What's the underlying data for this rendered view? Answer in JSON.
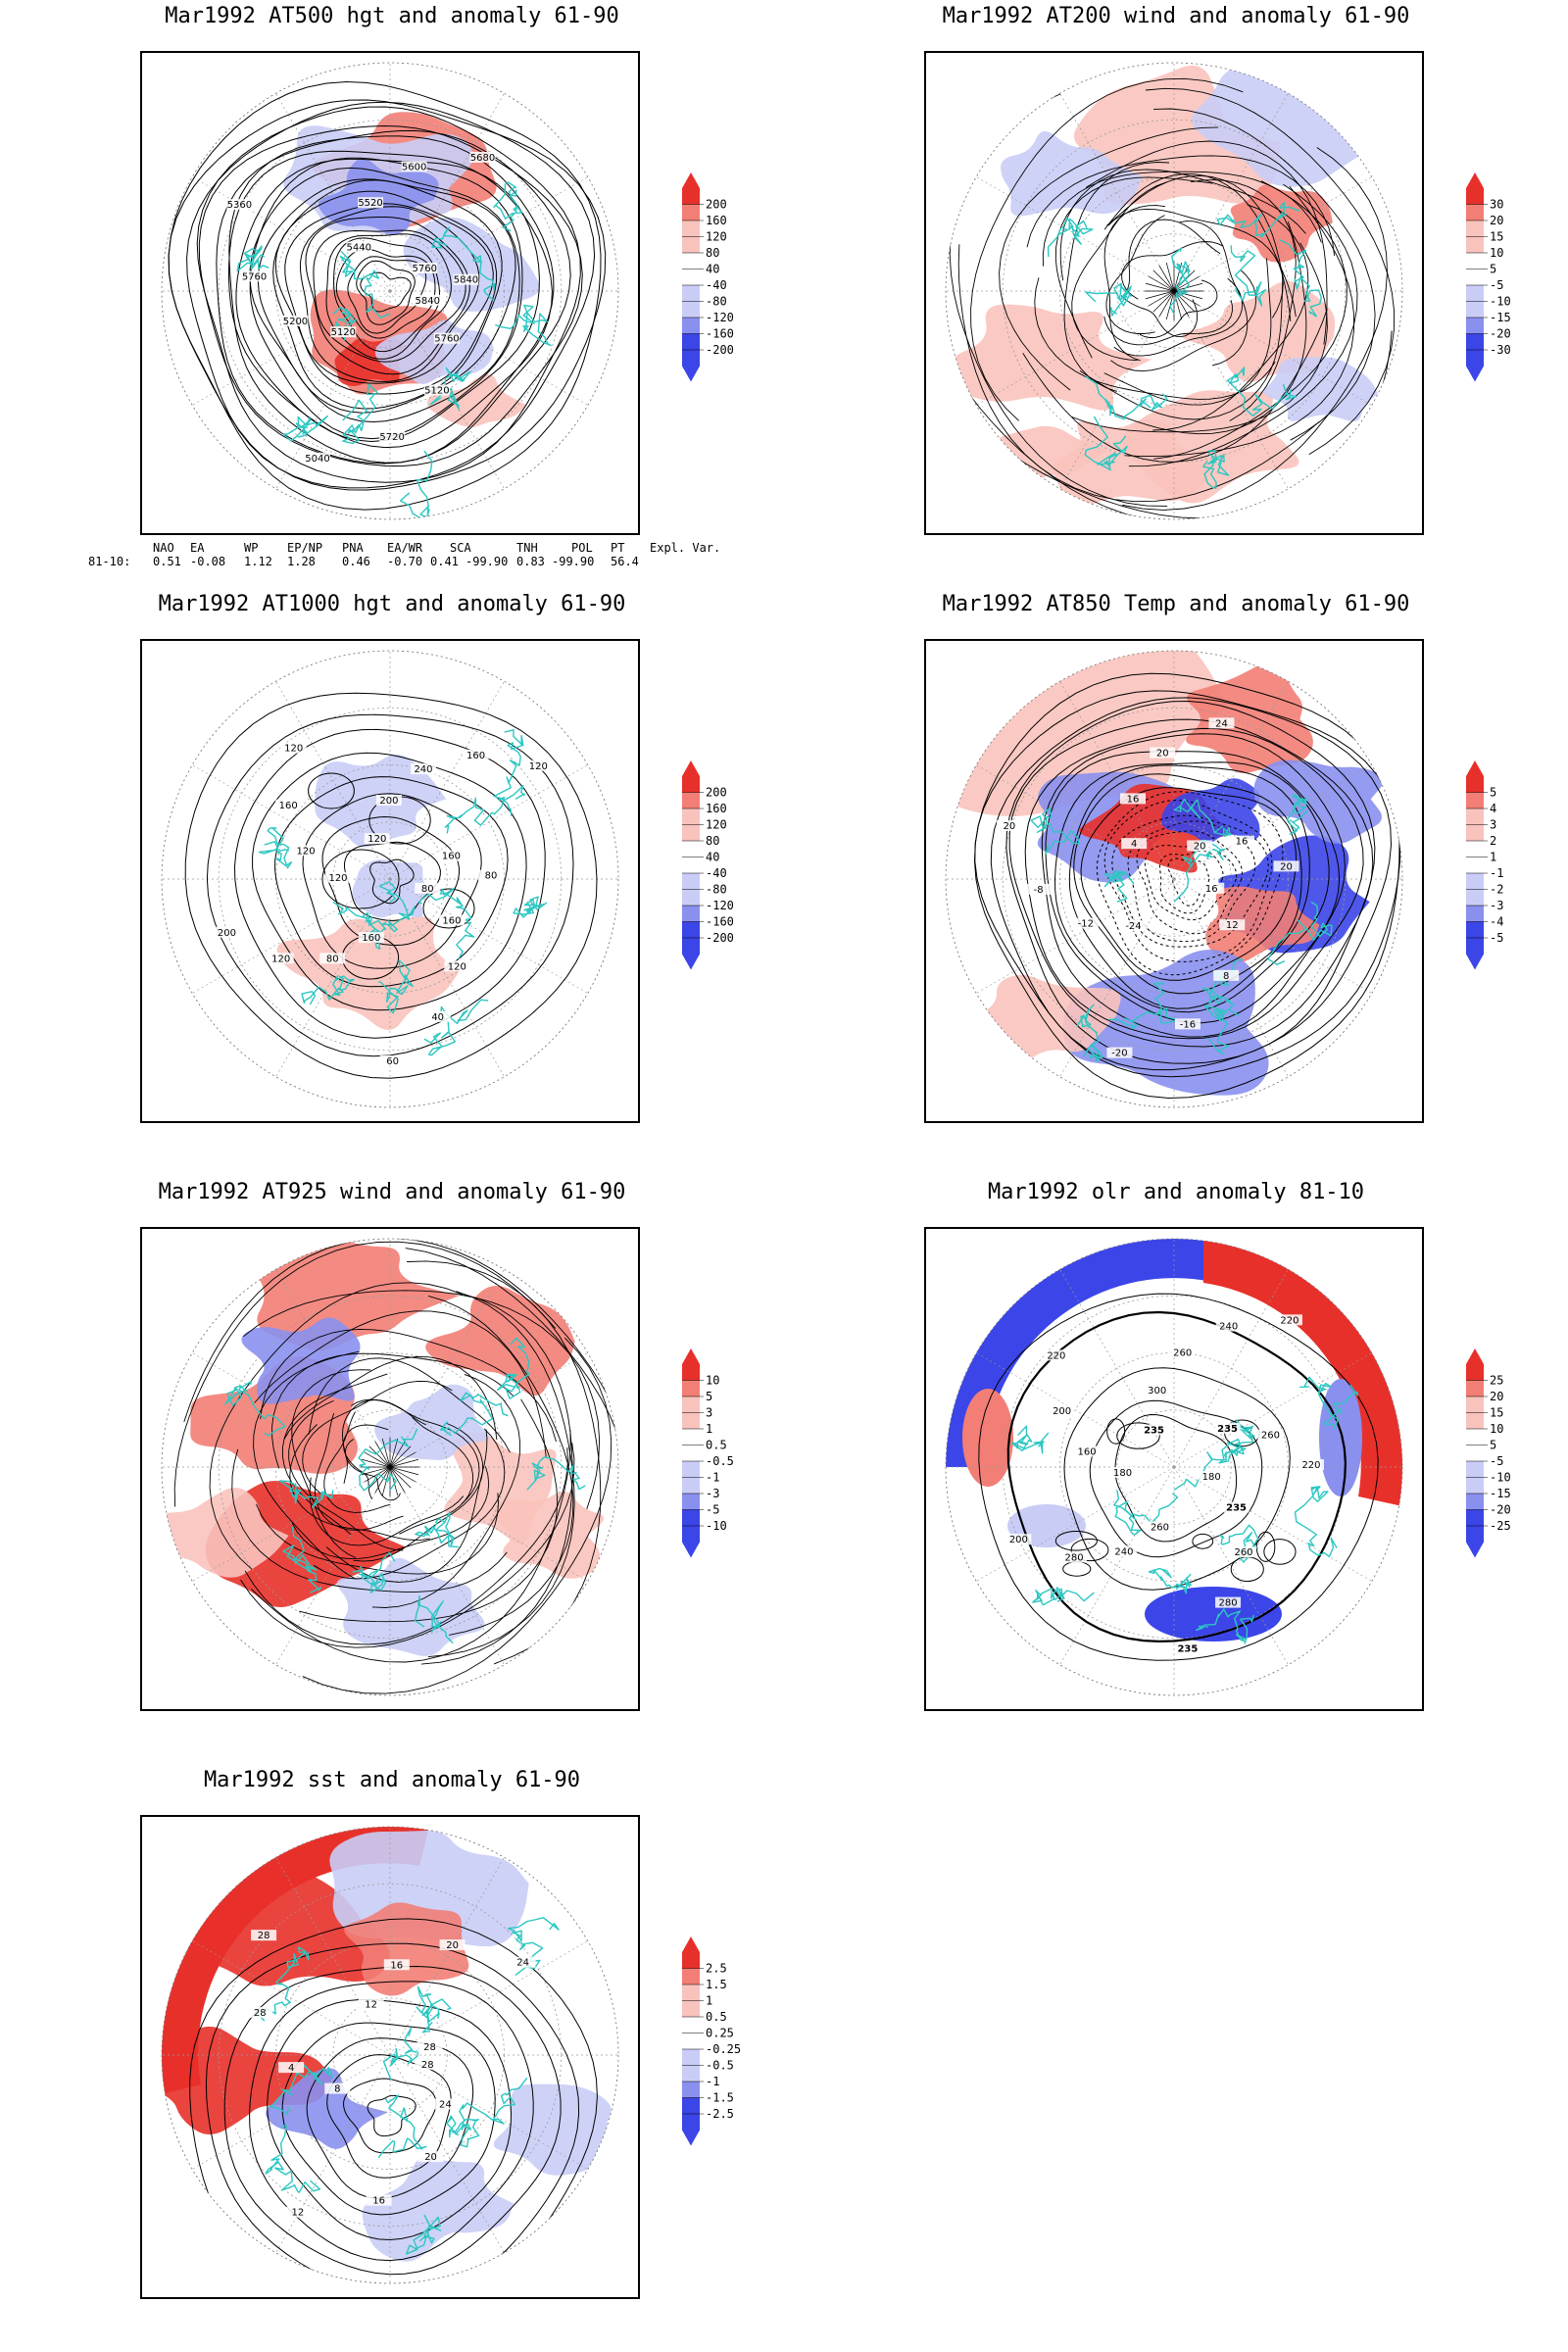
{
  "colors": {
    "red_strong": "#e8302a",
    "red_mid": "#f27e76",
    "red_light": "#f9c3bd",
    "white": "#ffffff",
    "blue_light": "#c9cdf6",
    "blue_mid": "#8a90ee",
    "blue_strong": "#3b45e8",
    "coast": "#2cc7c2",
    "contour": "#000000",
    "grid": "#9a9a9a"
  },
  "panels": [
    {
      "id": "at500",
      "title": "Mar1992 AT500 hgt and anomaly 61-90",
      "kind": "height",
      "colorbar": [
        "200",
        "160",
        "120",
        "80",
        "40",
        "-40",
        "-80",
        "-120",
        "-160",
        "-200"
      ],
      "contour_labels": [
        "5840",
        "5760",
        "5120",
        "5720",
        "5040",
        "5120",
        "5200",
        "5760",
        "5360",
        "5440",
        "5520",
        "5600",
        "5680",
        "5760",
        "5840"
      ]
    },
    {
      "id": "at200",
      "title": "Mar1992 AT200 wind and anomaly 61-90",
      "kind": "wind",
      "colorbar": [
        "30",
        "20",
        "15",
        "10",
        "5",
        "-5",
        "-10",
        "-15",
        "-20",
        "-30"
      ],
      "contour_labels": []
    },
    {
      "id": "at1000",
      "title": "Mar1992 AT1000 hgt and anomaly 61-90",
      "kind": "height",
      "colorbar": [
        "200",
        "160",
        "120",
        "80",
        "40",
        "-40",
        "-80",
        "-120",
        "-160",
        "-200"
      ],
      "contour_labels": [
        "80",
        "160",
        "120",
        "40",
        "60",
        "160",
        "80",
        "120",
        "200",
        "120",
        "120",
        "160",
        "120",
        "120",
        "200",
        "240",
        "160",
        "120",
        "160",
        "80"
      ]
    },
    {
      "id": "at850",
      "title": "Mar1992 AT850 Temp and anomaly 61-90",
      "kind": "temp",
      "colorbar": [
        "5",
        "4",
        "3",
        "2",
        "1",
        "-1",
        "-2",
        "-3",
        "-4",
        "-5"
      ],
      "contour_labels": [
        "16",
        "12",
        "8",
        "-16",
        "-20",
        "-24",
        "-12",
        "-8",
        "20",
        "4",
        "16",
        "20",
        "24",
        "20",
        "16",
        "20"
      ]
    },
    {
      "id": "at925",
      "title": "Mar1992 AT925 wind and anomaly 61-90",
      "kind": "wind",
      "colorbar": [
        "10",
        "5",
        "3",
        "1",
        "0.5",
        "-0.5",
        "-1",
        "-3",
        "-5",
        "-10"
      ],
      "contour_labels": []
    },
    {
      "id": "olr",
      "title": "Mar1992 olr and anomaly 81-10",
      "kind": "olr",
      "colorbar": [
        "25",
        "20",
        "15",
        "10",
        "5",
        "-5",
        "-10",
        "-15",
        "-20",
        "-25"
      ],
      "contour_labels": [
        "180",
        "235",
        "260",
        "280",
        "235",
        "260",
        "240",
        "280",
        "200",
        "180",
        "160",
        "200",
        "220",
        "235",
        "300",
        "260",
        "240",
        "220",
        "235",
        "260",
        "220"
      ]
    },
    {
      "id": "sst",
      "title": "Mar1992 sst and anomaly 61-90",
      "kind": "sst",
      "colorbar": [
        "2.5",
        "1.5",
        "1",
        "0.5",
        "0.25",
        "-0.25",
        "-0.5",
        "-1",
        "-1.5",
        "-2.5"
      ],
      "contour_labels": [
        "28",
        "24",
        "20",
        "16",
        "12",
        "8",
        "4",
        "28",
        "28",
        "12",
        "16",
        "20",
        "24",
        "28"
      ]
    }
  ],
  "indices": {
    "headers": [
      "NAO",
      "EA",
      "WP",
      "EP/NP",
      "PNA",
      "EA/WR",
      "SCA",
      "TNH",
      "POL",
      "PT",
      "Expl. Var."
    ],
    "row_label": "81-10:",
    "values": [
      "0.51",
      "-0.08",
      "1.12",
      "1.28",
      "0.46",
      "-0.70",
      "0.41",
      "-99.90",
      "0.83",
      "-99.90",
      "56.4"
    ]
  }
}
